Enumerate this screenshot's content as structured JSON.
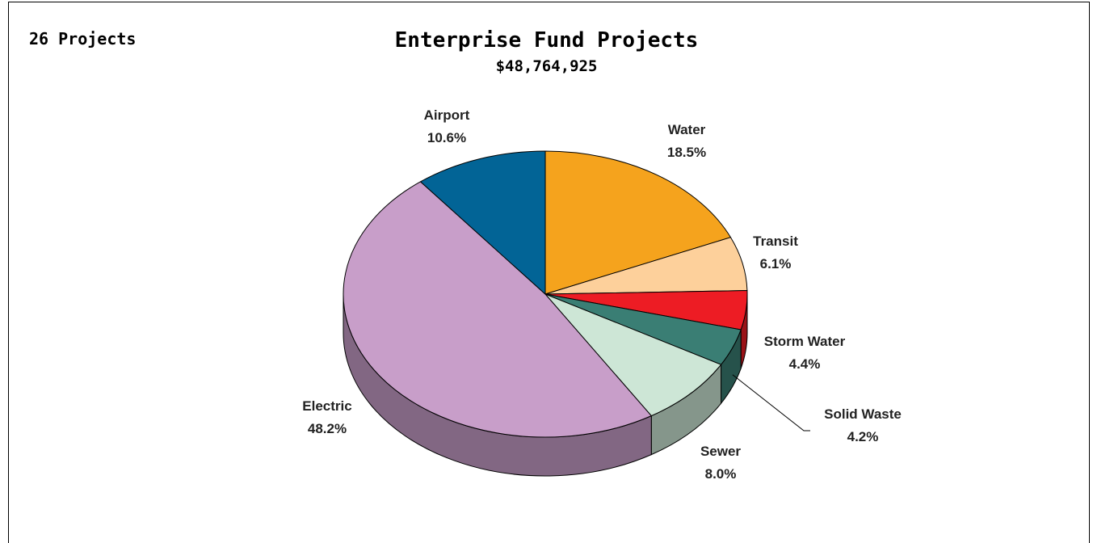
{
  "header": {
    "project_count": "26 Projects",
    "title": "Enterprise Fund Projects",
    "total": "$48,764,925"
  },
  "chart_data": {
    "type": "pie",
    "title": "Enterprise Fund Projects",
    "subtitle": "$48,764,925",
    "slices": [
      {
        "name": "Water",
        "value": 18.5,
        "label": "18.5%",
        "color": "#f5a31d"
      },
      {
        "name": "Transit",
        "value": 6.1,
        "label": "6.1%",
        "color": "#fdd09b"
      },
      {
        "name": "Storm Water",
        "value": 4.4,
        "label": "4.4%",
        "color": "#ed1c24"
      },
      {
        "name": "Solid Waste",
        "value": 4.2,
        "label": "4.2%",
        "color": "#3a7e74"
      },
      {
        "name": "Sewer",
        "value": 8.0,
        "label": "8.0%",
        "color": "#cde6d6"
      },
      {
        "name": "Electric",
        "value": 48.2,
        "label": "48.2%",
        "color": "#c89ec9"
      },
      {
        "name": "Airport",
        "value": 10.6,
        "label": "10.6%",
        "color": "#026496"
      }
    ]
  }
}
